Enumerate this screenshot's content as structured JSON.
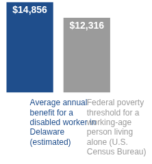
{
  "chart_data": {
    "type": "bar",
    "categories": [
      "Average annual benefit for a disabled worker in Delaware (estimated)",
      "Federal poverty threshold for a working-age person living alone (U.S. Census Bureau)"
    ],
    "values": [
      14856,
      12316
    ],
    "value_labels": [
      "$14,856",
      "$12,316"
    ],
    "colors": [
      "#1f4e8c",
      "#9b9b9b"
    ],
    "ylim": [
      0,
      15000
    ],
    "yticks": [
      0,
      5000,
      10000,
      15000
    ],
    "grid": false,
    "data_labels": true,
    "tick_labels": "x"
  }
}
